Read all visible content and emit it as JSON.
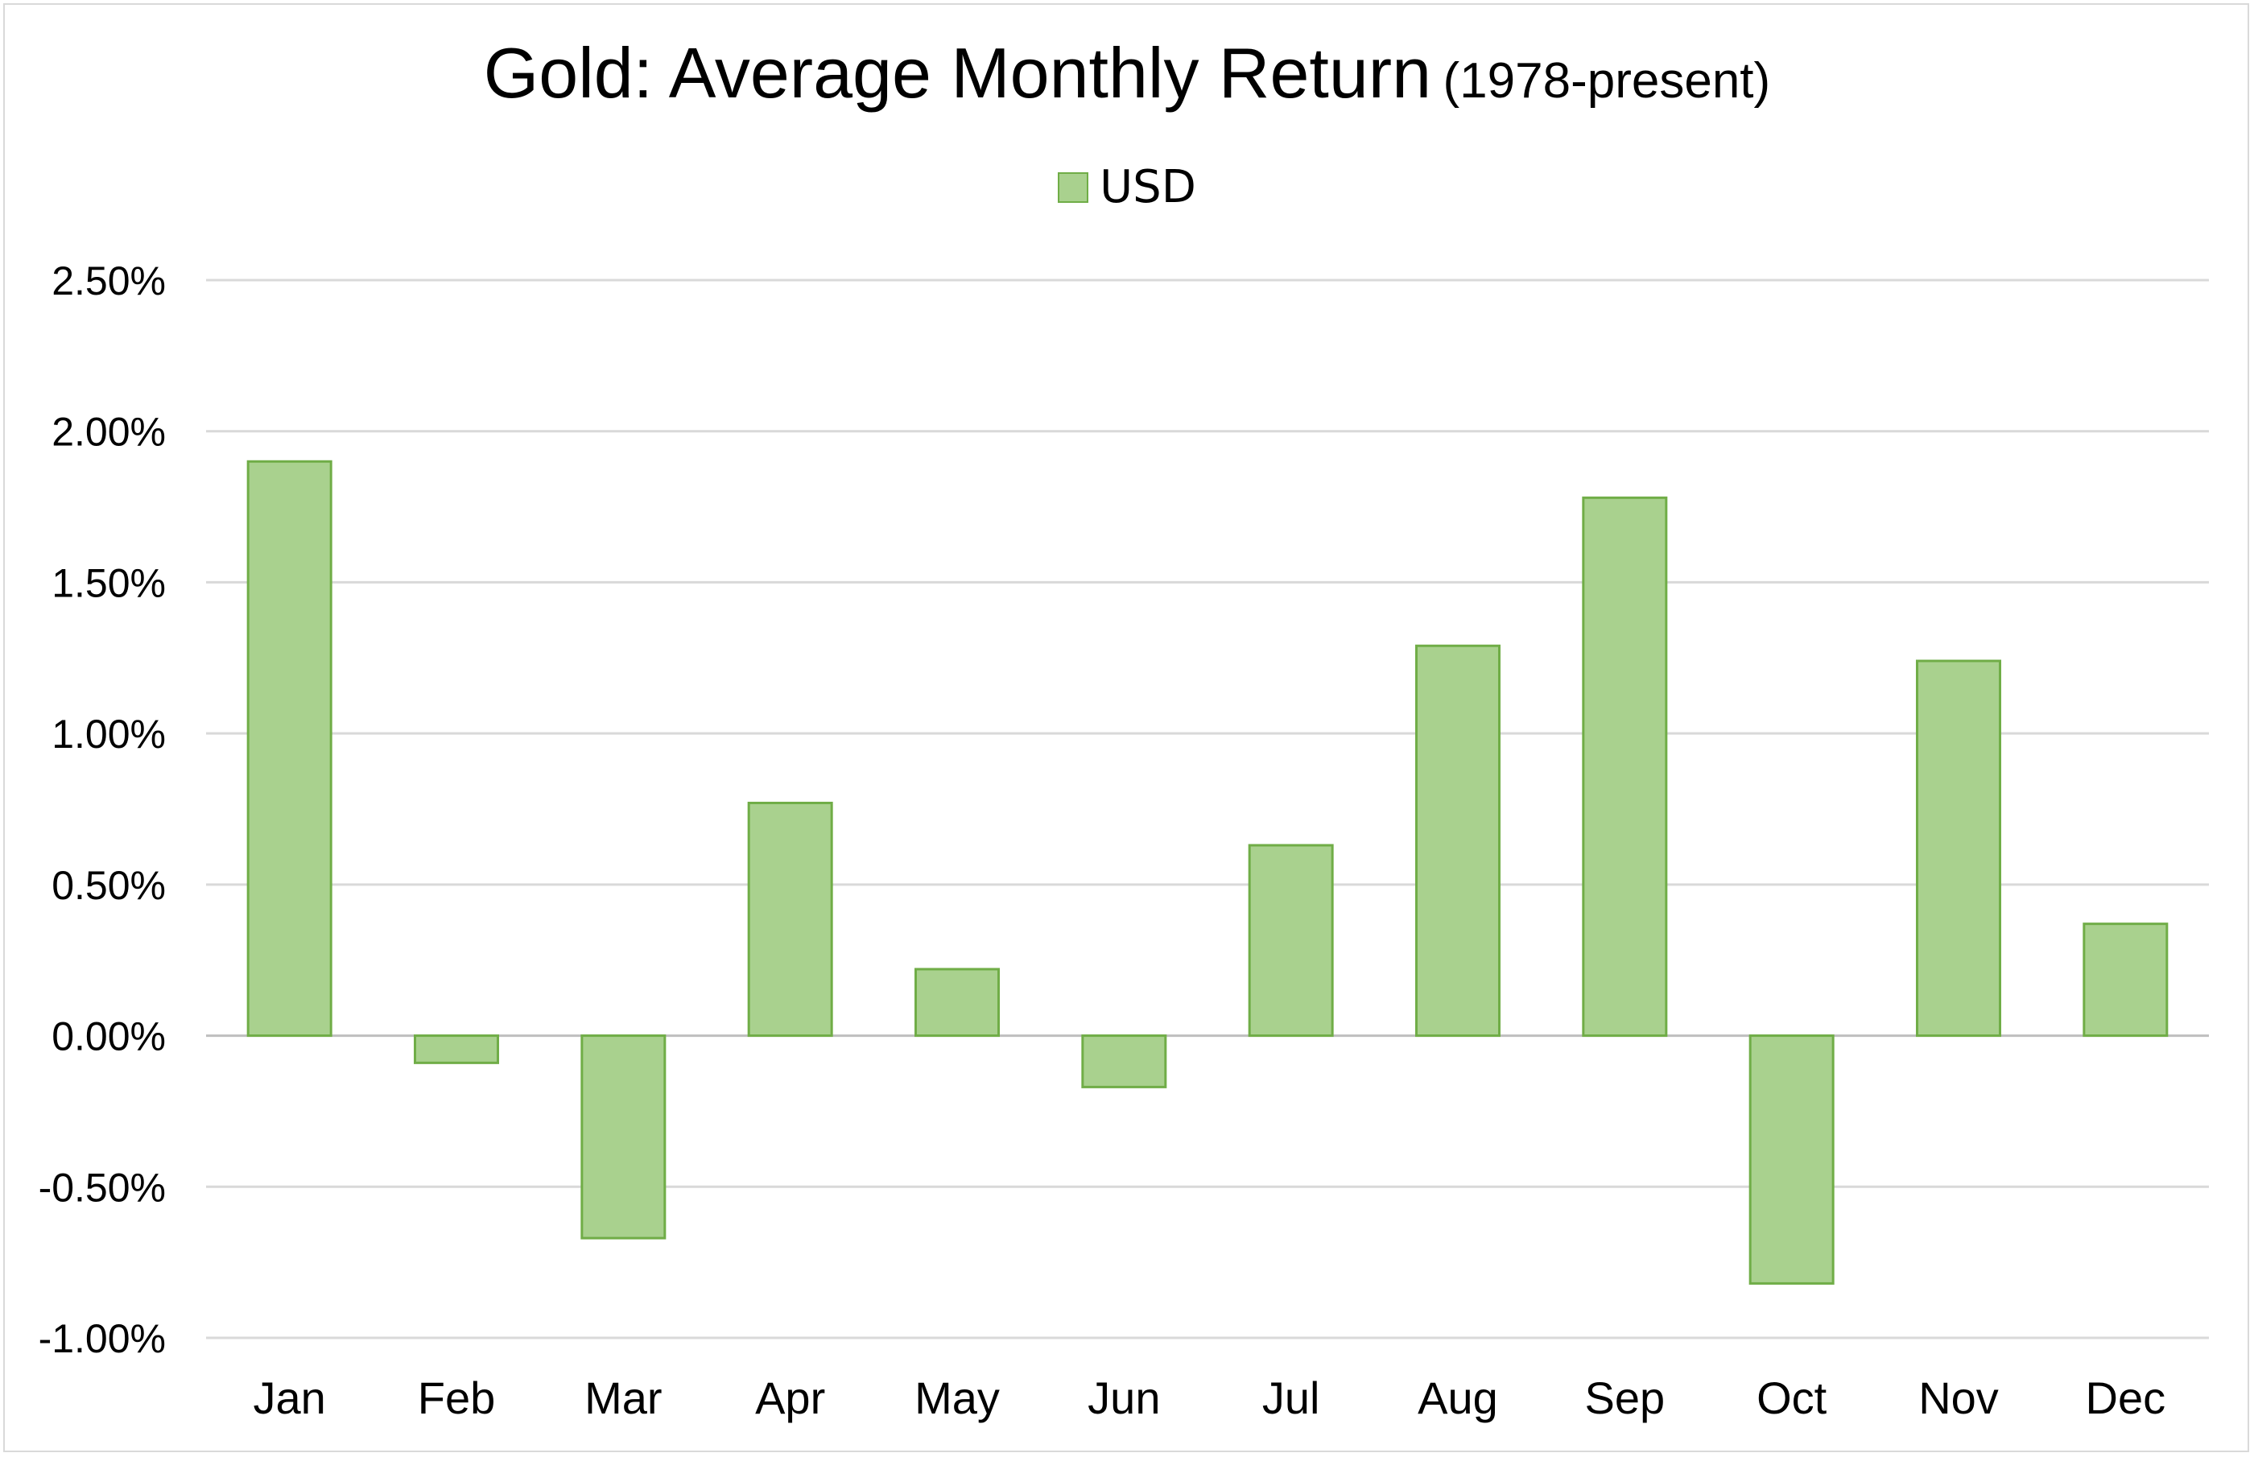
{
  "chart_data": {
    "type": "bar",
    "title": "Gold: Average Monthly Return",
    "subtitle": "(1978-present)",
    "xlabel": "",
    "ylabel": "",
    "categories": [
      "Jan",
      "Feb",
      "Mar",
      "Apr",
      "May",
      "Jun",
      "Jul",
      "Aug",
      "Sep",
      "Oct",
      "Nov",
      "Dec"
    ],
    "series": [
      {
        "name": "USD",
        "values": [
          1.9,
          -0.09,
          -0.67,
          0.77,
          0.22,
          -0.17,
          0.63,
          1.29,
          1.78,
          -0.82,
          1.24,
          0.37
        ]
      }
    ],
    "ylim": [
      -1.0,
      2.5
    ],
    "yticks": [
      2.5,
      2.0,
      1.5,
      1.0,
      0.5,
      0.0,
      -0.5,
      -1.0
    ],
    "ytick_labels": [
      "2.50%",
      "2.00%",
      "1.50%",
      "1.00%",
      "0.50%",
      "0.00%",
      "-0.50%",
      "-1.00%"
    ],
    "grid": true,
    "legend": "top-center",
    "colors": {
      "bar_fill": "#a9d18e",
      "bar_stroke": "#70ad47",
      "grid": "#d9d9d9"
    }
  }
}
